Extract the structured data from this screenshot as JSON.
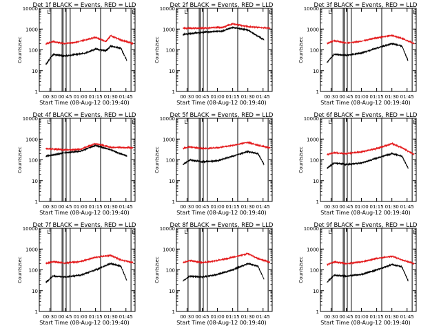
{
  "colors": {
    "events": "#000000",
    "lld": "#e41a1c",
    "axis": "#000000",
    "background": "#ffffff"
  },
  "common": {
    "xlabel": "Start Time (08-Aug-12 00:19:40)",
    "ylabel": "Counts/sec",
    "x_ticks": [
      "00:30",
      "00:45",
      "01:00",
      "01:15",
      "01:30",
      "01:45"
    ],
    "y_ticks": [
      "1",
      "10",
      "100",
      "1000",
      "10000"
    ],
    "y_scale": "log",
    "ylim": [
      1,
      10000
    ],
    "marker_label": "L"
  },
  "chart_data": [
    {
      "type": "line",
      "title": "Det 1f BLACK = Events, RED = LLD",
      "series": [
        {
          "name": "Events",
          "color": "#000000",
          "x": [
            "00:26",
            "00:33",
            "00:45",
            "00:55",
            "01:05",
            "01:15",
            "01:25",
            "01:30",
            "01:40",
            "01:46"
          ],
          "values": [
            20,
            60,
            50,
            60,
            70,
            110,
            90,
            150,
            120,
            30
          ]
        },
        {
          "name": "LLD",
          "color": "#e41a1c",
          "x": [
            "00:26",
            "00:33",
            "00:45",
            "00:55",
            "01:05",
            "01:15",
            "01:25",
            "01:30",
            "01:40",
            "01:52"
          ],
          "values": [
            190,
            250,
            200,
            230,
            300,
            400,
            250,
            480,
            300,
            200
          ]
        }
      ]
    },
    {
      "type": "line",
      "title": "Det 2f BLACK = Events, RED = LLD",
      "series": [
        {
          "name": "Events",
          "color": "#000000",
          "x": [
            "00:26",
            "00:45",
            "01:05",
            "01:15",
            "01:30",
            "01:46"
          ],
          "values": [
            550,
            700,
            800,
            1200,
            900,
            300
          ]
        },
        {
          "name": "LLD",
          "color": "#e41a1c",
          "x": [
            "00:26",
            "00:45",
            "01:05",
            "01:15",
            "01:30",
            "01:52"
          ],
          "values": [
            1100,
            1100,
            1200,
            1800,
            1300,
            1100
          ]
        }
      ]
    },
    {
      "type": "line",
      "title": "Det 3f BLACK = Events, RED = LLD",
      "series": [
        {
          "name": "Events",
          "color": "#000000",
          "x": [
            "00:26",
            "00:33",
            "00:45",
            "01:00",
            "01:15",
            "01:30",
            "01:40",
            "01:46"
          ],
          "values": [
            25,
            60,
            55,
            70,
            120,
            200,
            150,
            30
          ]
        },
        {
          "name": "LLD",
          "color": "#e41a1c",
          "x": [
            "00:26",
            "00:33",
            "00:45",
            "01:00",
            "01:15",
            "01:30",
            "01:40",
            "01:52"
          ],
          "values": [
            200,
            280,
            210,
            260,
            380,
            500,
            350,
            200
          ]
        }
      ]
    },
    {
      "type": "line",
      "title": "Det 4f BLACK = Events, RED = LLD",
      "series": [
        {
          "name": "Events",
          "color": "#000000",
          "x": [
            "00:26",
            "00:45",
            "01:00",
            "01:15",
            "01:30",
            "01:46"
          ],
          "values": [
            150,
            220,
            260,
            500,
            300,
            150
          ]
        },
        {
          "name": "LLD",
          "color": "#e41a1c",
          "x": [
            "00:26",
            "00:45",
            "01:00",
            "01:15",
            "01:30",
            "01:52"
          ],
          "values": [
            350,
            300,
            320,
            600,
            400,
            380
          ]
        }
      ]
    },
    {
      "type": "line",
      "title": "Det 5f BLACK = Events, RED = LLD",
      "series": [
        {
          "name": "Events",
          "color": "#000000",
          "x": [
            "00:26",
            "00:33",
            "00:45",
            "01:00",
            "01:15",
            "01:30",
            "01:40",
            "01:46"
          ],
          "values": [
            60,
            100,
            80,
            90,
            150,
            250,
            200,
            60
          ]
        },
        {
          "name": "LLD",
          "color": "#e41a1c",
          "x": [
            "00:26",
            "00:33",
            "00:45",
            "01:00",
            "01:15",
            "01:30",
            "01:40",
            "01:52"
          ],
          "values": [
            350,
            420,
            350,
            380,
            500,
            700,
            500,
            380
          ]
        }
      ]
    },
    {
      "type": "line",
      "title": "Det 6f BLACK = Events, RED = LLD",
      "series": [
        {
          "name": "Events",
          "color": "#000000",
          "x": [
            "00:26",
            "00:33",
            "00:45",
            "01:00",
            "01:15",
            "01:30",
            "01:40",
            "01:46"
          ],
          "values": [
            40,
            70,
            60,
            70,
            120,
            200,
            150,
            40
          ]
        },
        {
          "name": "LLD",
          "color": "#e41a1c",
          "x": [
            "00:26",
            "00:33",
            "00:45",
            "01:00",
            "01:15",
            "01:30",
            "01:40",
            "01:52"
          ],
          "values": [
            180,
            220,
            200,
            240,
            350,
            600,
            380,
            180
          ]
        }
      ]
    },
    {
      "type": "line",
      "title": "Det 7f BLACK = Events, RED = LLD",
      "series": [
        {
          "name": "Events",
          "color": "#000000",
          "x": [
            "00:26",
            "00:33",
            "00:45",
            "01:00",
            "01:15",
            "01:30",
            "01:40",
            "01:46"
          ],
          "values": [
            25,
            50,
            45,
            55,
            100,
            200,
            150,
            30
          ]
        },
        {
          "name": "LLD",
          "color": "#e41a1c",
          "x": [
            "00:26",
            "00:33",
            "00:45",
            "01:00",
            "01:15",
            "01:30",
            "01:40",
            "01:52"
          ],
          "values": [
            200,
            250,
            210,
            250,
            400,
            500,
            300,
            220
          ]
        }
      ]
    },
    {
      "type": "line",
      "title": "Det 8f BLACK = Events, RED = LLD",
      "series": [
        {
          "name": "Events",
          "color": "#000000",
          "x": [
            "00:26",
            "00:33",
            "00:45",
            "01:00",
            "01:15",
            "01:30",
            "01:40",
            "01:46"
          ],
          "values": [
            30,
            50,
            45,
            60,
            100,
            200,
            150,
            35
          ]
        },
        {
          "name": "LLD",
          "color": "#e41a1c",
          "x": [
            "00:26",
            "00:33",
            "00:45",
            "01:00",
            "01:15",
            "01:30",
            "01:40",
            "01:52"
          ],
          "values": [
            220,
            280,
            220,
            280,
            400,
            600,
            350,
            230
          ]
        }
      ]
    },
    {
      "type": "line",
      "title": "Det 9f BLACK = Events, RED = LLD",
      "series": [
        {
          "name": "Events",
          "color": "#000000",
          "x": [
            "00:26",
            "00:33",
            "00:45",
            "01:00",
            "01:15",
            "01:30",
            "01:40",
            "01:46"
          ],
          "values": [
            25,
            55,
            50,
            60,
            100,
            180,
            140,
            30
          ]
        },
        {
          "name": "LLD",
          "color": "#e41a1c",
          "x": [
            "00:26",
            "00:33",
            "00:45",
            "01:00",
            "01:15",
            "01:30",
            "01:40",
            "01:52"
          ],
          "values": [
            180,
            240,
            200,
            240,
            350,
            450,
            300,
            200
          ]
        }
      ]
    }
  ]
}
